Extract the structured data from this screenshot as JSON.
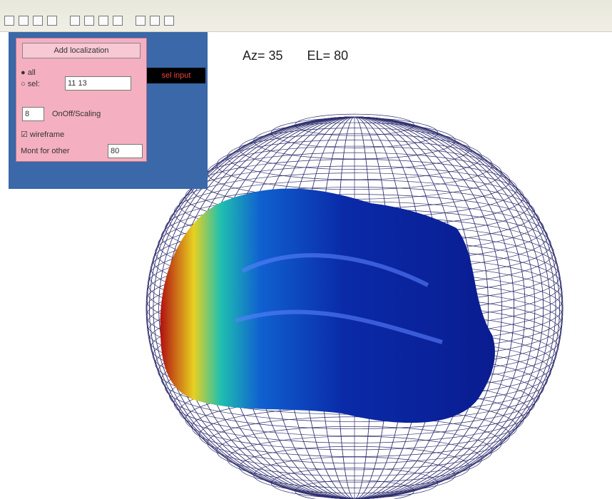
{
  "view": {
    "azimuth_label": "Az= 35",
    "elevation_label": "EL= 80"
  },
  "panel": {
    "title_button": "Add localization",
    "radio_all": "all",
    "radio_sel": "sel:",
    "sel_input": "11 13",
    "sel_button": "sel input",
    "number_input": "8",
    "toggle_button": "OnOff/Scaling",
    "wireframe_checkbox": "wireframe",
    "other_label": "Mont for other",
    "other_input": "80"
  }
}
